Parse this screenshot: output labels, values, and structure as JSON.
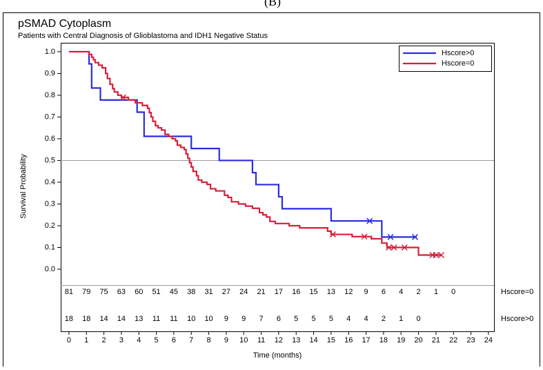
{
  "chart_data": {
    "type": "kaplan-meier",
    "panel_label": "(B)",
    "title": "pSMAD Cytoplasm",
    "subtitle": "Patients with Central Diagnosis of Glioblastoma and IDH1 Negative Status",
    "ylabel": "Survival Probability",
    "xlabel": "Time (months)",
    "xlim": [
      -0.47,
      24.32
    ],
    "ylim": [
      -0.073,
      1.041
    ],
    "xticks": [
      0,
      1,
      2,
      3,
      4,
      5,
      6,
      7,
      8,
      9,
      10,
      11,
      12,
      13,
      14,
      15,
      16,
      17,
      18,
      19,
      20,
      21,
      22,
      23,
      24
    ],
    "yticks": [
      {
        "value": 0,
        "label": "0.0"
      },
      0.1,
      0.2,
      0.3,
      0.4,
      0.5,
      0.6,
      0.7,
      0.8,
      0.9,
      {
        "value": 1,
        "label": "1.0"
      }
    ],
    "reference_line": 0.5,
    "legend": "upper right",
    "series": [
      {
        "name": "Hscore>0",
        "color": "#2b2be0",
        "x": [
          0,
          1.15,
          1.3,
          1.8,
          3.9,
          4.3,
          7.0,
          8.6,
          10.5,
          10.7,
          12.0,
          12.2,
          15.0,
          17.9,
          19.9
        ],
        "values": [
          1.0,
          0.944,
          0.833,
          0.778,
          0.722,
          0.611,
          0.555,
          0.5,
          0.444,
          0.389,
          0.333,
          0.278,
          0.222,
          0.148,
          0.148
        ],
        "censored": {
          "x": [
            17.2,
            18.4,
            19.8
          ],
          "values": [
            0.222,
            0.148,
            0.148
          ]
        },
        "at_risk": [
          18,
          18,
          14,
          14,
          13,
          11,
          11,
          10,
          10,
          9,
          9,
          7,
          6,
          5,
          5,
          5,
          4,
          4,
          2,
          1,
          0
        ]
      },
      {
        "name": "Hscore=0",
        "color": "#d4203a",
        "x": [
          0,
          1.15,
          1.3,
          1.4,
          1.5,
          1.7,
          1.9,
          2.1,
          2.2,
          2.35,
          2.5,
          2.6,
          2.8,
          3.0,
          3.4,
          3.8,
          4.2,
          4.5,
          4.6,
          4.7,
          4.8,
          4.95,
          5.1,
          5.3,
          5.5,
          5.7,
          5.9,
          6.1,
          6.2,
          6.4,
          6.6,
          6.7,
          6.8,
          6.9,
          7.0,
          7.1,
          7.3,
          7.4,
          7.6,
          7.9,
          8.1,
          8.4,
          8.9,
          9.1,
          9.3,
          9.7,
          10.1,
          10.5,
          10.9,
          11.1,
          11.3,
          11.5,
          11.8,
          12.6,
          13.2,
          14.8,
          15.0,
          16.2,
          17.3,
          17.9,
          18.2,
          20.0,
          21.3
        ],
        "values": [
          1.0,
          0.988,
          0.975,
          0.963,
          0.95,
          0.938,
          0.926,
          0.9,
          0.877,
          0.85,
          0.83,
          0.815,
          0.8,
          0.79,
          0.778,
          0.765,
          0.753,
          0.74,
          0.72,
          0.7,
          0.68,
          0.66,
          0.65,
          0.64,
          0.62,
          0.61,
          0.6,
          0.59,
          0.57,
          0.56,
          0.55,
          0.53,
          0.51,
          0.49,
          0.47,
          0.45,
          0.43,
          0.41,
          0.4,
          0.39,
          0.37,
          0.36,
          0.34,
          0.33,
          0.31,
          0.3,
          0.29,
          0.28,
          0.26,
          0.25,
          0.24,
          0.22,
          0.21,
          0.2,
          0.19,
          0.175,
          0.16,
          0.15,
          0.14,
          0.12,
          0.1,
          0.065,
          0.065
        ],
        "censored": {
          "x": [
            3.1,
            15.1,
            16.9,
            18.3,
            18.6,
            19.2,
            20.8,
            21.0,
            21.3
          ],
          "values": [
            0.79,
            0.16,
            0.15,
            0.1,
            0.1,
            0.1,
            0.065,
            0.065,
            0.065
          ]
        },
        "at_risk": [
          81,
          79,
          75,
          63,
          60,
          51,
          45,
          38,
          31,
          27,
          24,
          21,
          17,
          16,
          15,
          13,
          12,
          9,
          6,
          4,
          2,
          1,
          0
        ]
      }
    ]
  }
}
